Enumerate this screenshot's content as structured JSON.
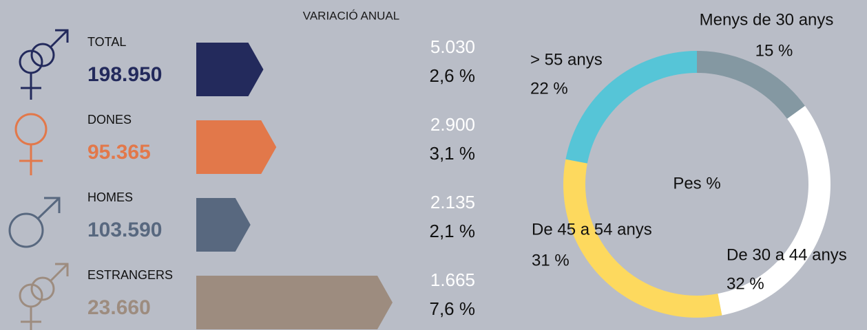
{
  "header": "VARIACIÓ ANUAL",
  "rows": [
    {
      "label": "TOTAL",
      "value": "198.950",
      "change": "5.030",
      "pct": 2.6,
      "pct_label": "2,6 %",
      "color": "#232a5c"
    },
    {
      "label": "DONES",
      "value": "95.365",
      "change": "2.900",
      "pct": 3.1,
      "pct_label": "3,1 %",
      "color": "#e2784a"
    },
    {
      "label": "HOMES",
      "value": "103.590",
      "change": "2.135",
      "pct": 2.1,
      "pct_label": "2,1 %",
      "color": "#58687f"
    },
    {
      "label": "ESTRANGERS",
      "value": "23.660",
      "change": "1.665",
      "pct": 7.6,
      "pct_label": "7,6 %",
      "color": "#9d8c7f"
    }
  ],
  "chart_data": {
    "type": "pie",
    "center_label": "Pes %",
    "categories": [
      "Menys de 30 anys",
      "De 30 a 44 anys",
      "De 45 a 54 anys",
      "> 55 anys"
    ],
    "values": [
      15,
      32,
      31,
      22
    ],
    "value_labels": [
      "15 %",
      "32 %",
      "31 %",
      "22 %"
    ],
    "colors": [
      "#8498a2",
      "#ffffff",
      "#fdd95e",
      "#56c5d7"
    ]
  }
}
